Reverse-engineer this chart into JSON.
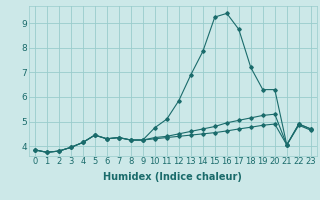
{
  "xlabel": "Humidex (Indice chaleur)",
  "background_color": "#cce8e8",
  "grid_color": "#99cccc",
  "line_color": "#1a6b6b",
  "x": [
    0,
    1,
    2,
    3,
    4,
    5,
    6,
    7,
    8,
    9,
    10,
    11,
    12,
    13,
    14,
    15,
    16,
    17,
    18,
    19,
    20,
    21,
    22,
    23
  ],
  "series1": [
    3.85,
    3.75,
    3.8,
    3.95,
    4.15,
    4.45,
    4.3,
    4.35,
    4.25,
    4.25,
    4.75,
    5.1,
    5.85,
    6.9,
    7.85,
    9.25,
    9.4,
    8.75,
    7.2,
    6.3,
    6.3,
    4.05,
    4.9,
    4.7
  ],
  "series2": [
    3.85,
    3.75,
    3.8,
    3.95,
    4.15,
    4.45,
    4.3,
    4.35,
    4.25,
    4.25,
    4.35,
    4.4,
    4.5,
    4.6,
    4.7,
    4.8,
    4.95,
    5.05,
    5.15,
    5.25,
    5.3,
    4.05,
    4.9,
    4.7
  ],
  "series3": [
    3.85,
    3.75,
    3.8,
    3.95,
    4.15,
    4.45,
    4.3,
    4.35,
    4.25,
    4.25,
    4.3,
    4.35,
    4.4,
    4.45,
    4.5,
    4.55,
    4.62,
    4.7,
    4.77,
    4.85,
    4.9,
    4.05,
    4.85,
    4.65
  ],
  "ylim": [
    3.6,
    9.7
  ],
  "yticks": [
    4,
    5,
    6,
    7,
    8,
    9
  ],
  "xticks": [
    0,
    1,
    2,
    3,
    4,
    5,
    6,
    7,
    8,
    9,
    10,
    11,
    12,
    13,
    14,
    15,
    16,
    17,
    18,
    19,
    20,
    21,
    22,
    23
  ],
  "tick_fontsize": 6.0,
  "xlabel_fontsize": 7.0,
  "ytick_fontsize": 6.5
}
